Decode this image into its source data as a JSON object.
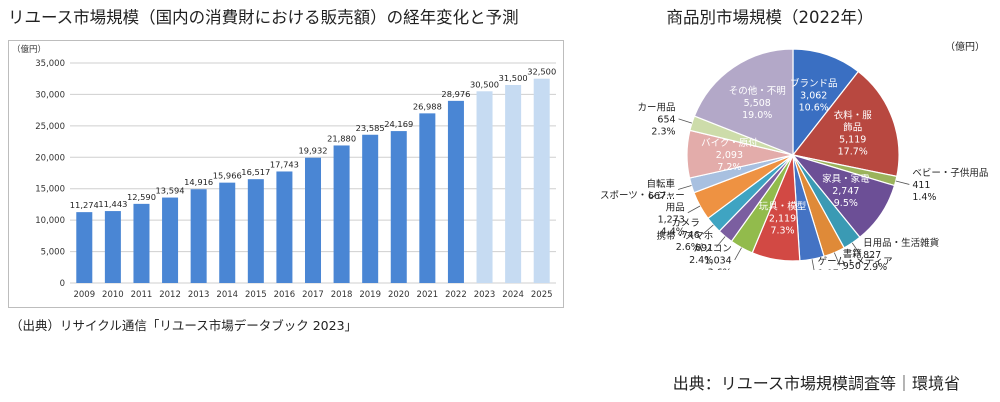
{
  "bar_title": "リユース市場規模（国内の消費財における販売額）の経年変化と予測",
  "bar_source": "（出典）リサイクル通信「リユース市場データブック 2023」",
  "pie_title": "商品別市場規模（2022年）",
  "page_source": "出典：リユース市場規模調査等｜環境省",
  "colors": {
    "actual": "#4a86d4",
    "forecast": "#c6dbf2",
    "grid": "#cfcfcf"
  },
  "chart_data": [
    {
      "type": "bar",
      "title": "リユース市場規模（国内の消費財における販売額）の経年変化と予測",
      "unit_label": "（億円）",
      "ylim": [
        0,
        35000
      ],
      "yticks": [
        "0",
        "5,000",
        "10,000",
        "15,000",
        "20,000",
        "25,000",
        "30,000",
        "35,000"
      ],
      "grid": true,
      "categories": [
        "2009",
        "2010",
        "2011",
        "2012",
        "2013",
        "2014",
        "2015",
        "2016",
        "2017",
        "2018",
        "2019",
        "2020",
        "2021",
        "2022",
        "2023",
        "2024",
        "2025"
      ],
      "values": [
        11274,
        11443,
        12590,
        13594,
        14916,
        15966,
        16517,
        17743,
        19932,
        21880,
        23585,
        24169,
        26988,
        28976,
        30500,
        31500,
        32500
      ],
      "labels": [
        "11,274",
        "11,443",
        "12,590",
        "13,594",
        "14,916",
        "15,966",
        "16,517",
        "17,743",
        "19,932",
        "21,880",
        "23,585",
        "24,169",
        "26,988",
        "28,976",
        "30,500",
        "31,500",
        "32,500"
      ],
      "forecast_from_index": 14
    },
    {
      "type": "pie",
      "title": "商品別市場規模（2022年）",
      "unit_label": "（億円）",
      "slices": [
        {
          "label": "ブランド品",
          "value": 3062,
          "value_text": "3,062",
          "pct": "10.6%",
          "color": "#3a6fc2",
          "inside": true
        },
        {
          "label": "衣料・服飾品",
          "label_lines": [
            "衣料・服",
            "飾品"
          ],
          "value": 5119,
          "value_text": "5,119",
          "pct": "17.7%",
          "color": "#b84840",
          "inside": true
        },
        {
          "label": "ベビー・子供用品",
          "value": 411,
          "value_text": "411",
          "pct": "1.4%",
          "color": "#9bb35c",
          "inside": false
        },
        {
          "label": "家具・家電",
          "value": 2747,
          "value_text": "2,747",
          "pct": "9.5%",
          "color": "#6c4f96",
          "inside": true
        },
        {
          "label": "日用品・生活雑貨",
          "value": 827,
          "value_text": "827",
          "pct": "2.9%",
          "color": "#3a9ab4",
          "inside": false
        },
        {
          "label": "書籍",
          "value": 950,
          "value_text": "950",
          "pct": "3.3%",
          "color": "#df8a38",
          "inside": false
        },
        {
          "label": "ゲーム・メディア",
          "value": 1074,
          "value_text": "1,074",
          "pct": "3.7%",
          "color": "#4473c4",
          "inside": false
        },
        {
          "label": "玩具・模型",
          "value": 2119,
          "value_text": "2,119",
          "pct": "7.3%",
          "color": "#d24944",
          "inside": true
        },
        {
          "label": "パソコン",
          "value": 1034,
          "value_text": "1,034",
          "pct": "3.6%",
          "color": "#92bb4c",
          "inside": false
        },
        {
          "label": "携帯・スマホ",
          "value": 691,
          "value_text": "691",
          "pct": "2.4%",
          "color": "#7b5ea0",
          "inside": false
        },
        {
          "label": "カメラ",
          "value": 746,
          "value_text": "746",
          "pct": "2.6%",
          "color": "#3fa4c2",
          "inside": false
        },
        {
          "label": "スポーツ・レジャー用品",
          "label_lines": [
            "スポーツ・レジャー",
            "用品"
          ],
          "value": 1273,
          "value_text": "1,273",
          "pct": "4.4%",
          "color": "#ee9242",
          "inside": false
        },
        {
          "label": "自転車",
          "value": 667,
          "value_text": "667...",
          "pct": "",
          "color": "#a8c0e0",
          "inside": false
        },
        {
          "label": "バイク・原付",
          "value": 2093,
          "value_text": "2,093",
          "pct": "7.2%",
          "color": "#e3acaa",
          "inside": true
        },
        {
          "label": "カー用品",
          "value": 654,
          "value_text": "654",
          "pct": "2.3%",
          "color": "#cddcaa",
          "inside": false
        },
        {
          "label": "その他・不明",
          "value": 5508,
          "value_text": "5,508",
          "pct": "19.0%",
          "color": "#b3a8c8",
          "inside": true
        }
      ]
    }
  ]
}
